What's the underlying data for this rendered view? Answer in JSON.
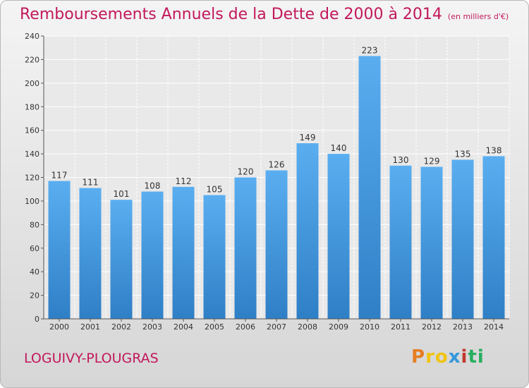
{
  "title": "Remboursements Annuels de la Dette de 2000 à 2014",
  "unit_note": "(en milliers d'€)",
  "commune": "LOGUIVY-PLOUGRAS",
  "logo": {
    "letters": [
      "P",
      "r",
      "o",
      "x",
      "i",
      "t",
      "i"
    ],
    "colors": [
      "#e67e22",
      "#f1c40f",
      "#f1c40f",
      "#3498db",
      "#c0392b",
      "#27ae60",
      "#27ae60"
    ]
  },
  "colors": {
    "bar": "#4a9be0",
    "title": "#c2185b",
    "grid": "#ffffff"
  },
  "chart_data": {
    "type": "bar",
    "categories": [
      "2000",
      "2001",
      "2002",
      "2003",
      "2004",
      "2005",
      "2006",
      "2007",
      "2008",
      "2009",
      "2010",
      "2011",
      "2012",
      "2013",
      "2014"
    ],
    "values": [
      117,
      111,
      101,
      108,
      112,
      105,
      120,
      126,
      149,
      140,
      223,
      130,
      129,
      135,
      138
    ],
    "ylim": [
      0,
      240
    ],
    "yticks": [
      0,
      20,
      40,
      60,
      80,
      100,
      120,
      140,
      160,
      180,
      200,
      220,
      240
    ],
    "grid": true,
    "show_data_labels": true
  }
}
